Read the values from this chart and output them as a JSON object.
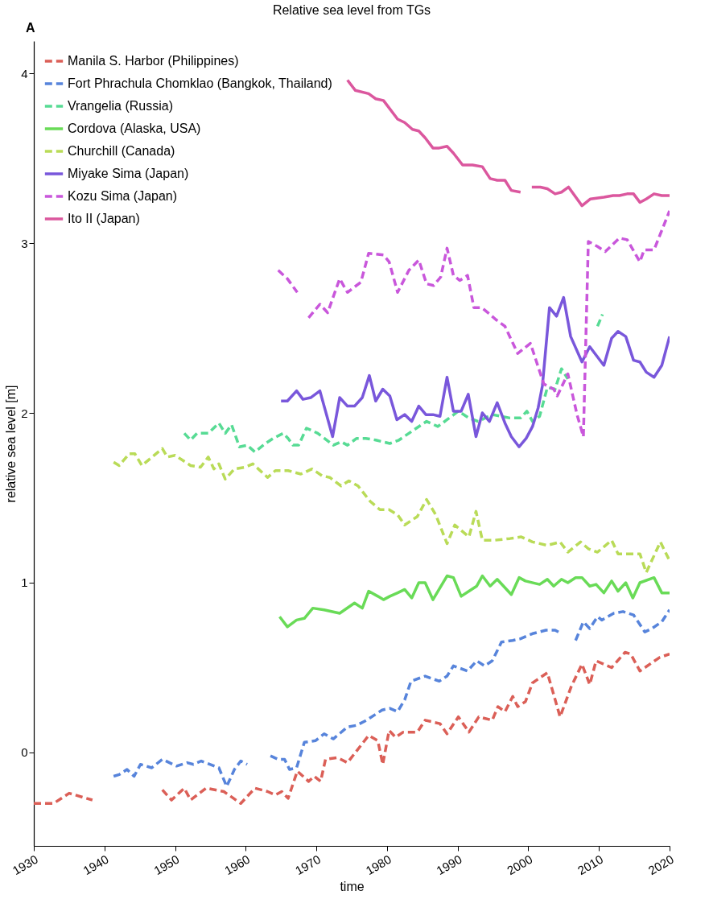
{
  "chart_data": {
    "type": "line",
    "title": "Relative sea level from TGs",
    "annotations": [
      "A"
    ],
    "xlabel": "time",
    "ylabel": "relative sea level [m]",
    "xlim": [
      1930,
      2020
    ],
    "xticks": [
      1930,
      1940,
      1950,
      1960,
      1970,
      1980,
      1990,
      2000,
      2010,
      2020
    ],
    "ylim": [
      -0.55,
      4.19
    ],
    "yticks": [
      0,
      1,
      2,
      3,
      4
    ],
    "grid": false,
    "legend": "top left",
    "marker": "none",
    "series": [
      {
        "name": "Manila S. Harbor (Philippines)",
        "color": "#db5f57",
        "line_style": "dashed",
        "x": [
          1930,
          1932.8,
          1935,
          1938.3,
          1940,
          1948.2,
          1949.5,
          1951.3,
          1952.2,
          1954.4,
          1956.9,
          1959.3,
          1961.3,
          1963.1,
          1964.2,
          1965.1,
          1966,
          1967.3,
          1968.9,
          1969.7,
          1970.6,
          1971.3,
          1973,
          1974.4,
          1977.4,
          1978.7,
          1979.4,
          1980.3,
          1981.2,
          1982.3,
          1984.3,
          1985.4,
          1987.5,
          1988.5,
          1990.1,
          1991.6,
          1993,
          1994.9,
          1995.7,
          1996.7,
          1997.8,
          1998.5,
          1999.6,
          2000.6,
          2002.7,
          2003.6,
          2004.5,
          2006.1,
          2007.6,
          2008.7,
          2009.6,
          2011.8,
          2013.7,
          2014.5,
          2015.8,
          2018.6,
          2020
        ],
        "values": [
          -0.3,
          -0.3,
          -0.24,
          -0.28,
          null,
          -0.22,
          -0.28,
          -0.21,
          -0.28,
          -0.21,
          -0.23,
          -0.3,
          -0.21,
          -0.23,
          -0.25,
          -0.23,
          -0.27,
          -0.11,
          -0.17,
          -0.14,
          -0.17,
          -0.04,
          -0.03,
          -0.06,
          0.1,
          0.07,
          -0.07,
          0.13,
          0.09,
          0.12,
          0.12,
          0.19,
          0.17,
          0.11,
          0.21,
          0.12,
          0.21,
          0.19,
          0.27,
          0.24,
          0.33,
          0.27,
          0.3,
          0.41,
          0.47,
          0.34,
          0.21,
          0.39,
          0.52,
          0.4,
          0.54,
          0.5,
          0.59,
          0.58,
          0.48,
          0.56,
          0.58
        ]
      },
      {
        "name": "Fort Phrachula Chomklao (Bangkok, Thailand)",
        "color": "#5784db",
        "line_style": "dashed",
        "x": [
          1941.3,
          1942.1,
          1943.2,
          1944.2,
          1945.1,
          1946.7,
          1948.2,
          1950.2,
          1951.7,
          1952.6,
          1953.7,
          1956.2,
          1957.3,
          1958.4,
          1959.3,
          1960.2,
          1962,
          1963.5,
          1964.6,
          1965.5,
          1966.2,
          1967.2,
          1968.3,
          1969.9,
          1971.1,
          1972.4,
          1974.4,
          1975.7,
          1977.1,
          1979.3,
          1980.4,
          1981.5,
          1982.5,
          1983.4,
          1985.4,
          1987.4,
          1988.5,
          1989.4,
          1991.4,
          1992.7,
          1993.8,
          1994.9,
          1996.2,
          1997.8,
          1998.9,
          2000.6,
          2002.5,
          2003.8,
          2004.7,
          2005.7,
          2006.7,
          2007.8,
          2008.7,
          2009.8,
          2010.4,
          2012.1,
          2013.4,
          2014.9,
          2016.5,
          2017.5,
          2018.9,
          2020
        ],
        "values": [
          -0.14,
          -0.13,
          -0.1,
          -0.14,
          -0.07,
          -0.09,
          -0.04,
          -0.08,
          -0.06,
          -0.07,
          -0.05,
          -0.09,
          -0.2,
          -0.1,
          -0.05,
          -0.07,
          null,
          -0.02,
          -0.04,
          -0.04,
          -0.1,
          -0.09,
          0.06,
          0.07,
          0.11,
          0.08,
          0.15,
          0.16,
          0.19,
          0.25,
          0.26,
          0.24,
          0.31,
          0.42,
          0.45,
          0.42,
          0.45,
          0.51,
          0.48,
          0.54,
          0.51,
          0.54,
          0.65,
          0.66,
          0.67,
          0.7,
          0.72,
          0.72,
          0.7,
          null,
          0.66,
          0.77,
          0.73,
          0.8,
          0.78,
          0.82,
          0.83,
          0.81,
          0.71,
          0.73,
          0.77,
          0.84
        ]
      },
      {
        "name": "Vrangelia (Russia)",
        "color": "#57db94",
        "line_style": "dashed",
        "x": [
          1951.3,
          1952.2,
          1953.1,
          1954.7,
          1956.2,
          1957.1,
          1958,
          1959.1,
          1960.2,
          1961.3,
          1962.8,
          1963.9,
          1965.3,
          1966,
          1966.7,
          1967.5,
          1968.6,
          1970.2,
          1972.4,
          1973.5,
          1974.4,
          1975.7,
          1977,
          1978.4,
          1980.4,
          1981.7,
          1983.1,
          1985.6,
          1987.2,
          1988.5,
          1990.1,
          1991.6,
          1992.9,
          1994.9,
          1997.4,
          1998.9,
          1999.8,
          2000.6,
          2001.6,
          2002.7,
          2003.8,
          2004.7,
          2005.6,
          2007.5,
          2009.8,
          2010.5
        ],
        "values": [
          1.88,
          1.84,
          1.88,
          1.88,
          1.94,
          1.88,
          1.93,
          1.8,
          1.81,
          1.77,
          1.82,
          1.85,
          1.88,
          1.85,
          1.81,
          1.81,
          1.91,
          1.88,
          1.81,
          1.83,
          1.81,
          1.85,
          1.85,
          1.84,
          1.82,
          1.84,
          1.88,
          1.95,
          1.92,
          1.96,
          2.01,
          1.97,
          1.95,
          1.99,
          1.97,
          1.97,
          2.01,
          1.95,
          1.98,
          2.15,
          2.14,
          2.26,
          2.2,
          null,
          2.51,
          2.58
        ]
      },
      {
        "name": "Cordova (Alaska, USA)",
        "color": "#69db57",
        "line_style": "solid",
        "x": [
          1964.8,
          1965.9,
          1967.2,
          1968.3,
          1969.5,
          1971.1,
          1973.3,
          1975.4,
          1976.5,
          1977.4,
          1978.7,
          1979.5,
          1980.4,
          1981.5,
          1982.5,
          1983.5,
          1984.5,
          1985.4,
          1986.5,
          1988.5,
          1989.4,
          1990.5,
          1991.6,
          1992.7,
          1993.5,
          1994.6,
          1995.6,
          1997.6,
          1998.7,
          1999.6,
          2001.6,
          2002.7,
          2003.6,
          2004.7,
          2005.6,
          2006.7,
          2007.6,
          2008.7,
          2009.6,
          2010.7,
          2011.8,
          2012.7,
          2013.8,
          2014.8,
          2015.8,
          2017.8,
          2018.9,
          2020
        ],
        "values": [
          0.8,
          0.74,
          0.78,
          0.79,
          0.85,
          0.84,
          0.82,
          0.88,
          0.85,
          0.95,
          0.92,
          0.9,
          0.92,
          0.94,
          0.96,
          0.91,
          1.0,
          1.0,
          0.9,
          1.04,
          1.03,
          0.92,
          0.95,
          0.98,
          1.04,
          0.98,
          1.02,
          0.93,
          1.03,
          1.01,
          0.99,
          1.02,
          0.98,
          1.02,
          1.0,
          1.03,
          1.03,
          0.98,
          0.99,
          0.94,
          1.01,
          0.95,
          1.0,
          0.91,
          1.0,
          1.03,
          0.94,
          0.94
        ]
      },
      {
        "name": "Churchill (Canada)",
        "color": "#b9db57",
        "line_style": "dashed",
        "x": [
          1941.3,
          1942.1,
          1943.5,
          1944.3,
          1945.3,
          1948.2,
          1948.9,
          1950,
          1952.2,
          1953.6,
          1954.7,
          1955.5,
          1956.2,
          1957.1,
          1958.4,
          1959.9,
          1961,
          1963.1,
          1964.2,
          1966,
          1967.8,
          1969.4,
          1970.8,
          1971.9,
          1973.5,
          1974.6,
          1975.9,
          1977.6,
          1979,
          1980.3,
          1981.5,
          1982.5,
          1984.3,
          1985.6,
          1986.9,
          1988.5,
          1989.6,
          1991.6,
          1992.6,
          1993.5,
          1995.2,
          1997.4,
          1999,
          2000.6,
          2002.7,
          2004.5,
          2005.6,
          2007.4,
          2008.5,
          2009.8,
          2011.8,
          2012.7,
          2014.5,
          2015.8,
          2016.7,
          2018.7,
          2020
        ],
        "values": [
          1.71,
          1.69,
          1.76,
          1.76,
          1.69,
          1.79,
          1.74,
          1.75,
          1.69,
          1.68,
          1.74,
          1.67,
          1.7,
          1.61,
          1.67,
          1.68,
          1.7,
          1.62,
          1.66,
          1.66,
          1.64,
          1.67,
          1.63,
          1.62,
          1.57,
          1.6,
          1.57,
          1.48,
          1.43,
          1.43,
          1.4,
          1.34,
          1.39,
          1.49,
          1.4,
          1.23,
          1.34,
          1.27,
          1.42,
          1.25,
          1.25,
          1.26,
          1.27,
          1.24,
          1.22,
          1.24,
          1.18,
          1.24,
          1.2,
          1.18,
          1.25,
          1.17,
          1.17,
          1.17,
          1.06,
          1.24,
          1.13
        ]
      },
      {
        "name": "Miyake Sima (Japan)",
        "color": "#7957db",
        "line_style": "solid",
        "x": [
          1965,
          1965.9,
          1967.2,
          1968.1,
          1969.2,
          1970.5,
          1972.3,
          1973.3,
          1974.4,
          1975.4,
          1976.5,
          1977.5,
          1978.4,
          1979.4,
          1980.4,
          1981.4,
          1982.5,
          1983.5,
          1984.5,
          1985.5,
          1986.5,
          1987.5,
          1988.5,
          1989.4,
          1990.5,
          1991.5,
          1992.6,
          1993.5,
          1994.5,
          1995.6,
          1996.7,
          1997.6,
          1998.7,
          1999.7,
          2000.6,
          2001.4,
          2002,
          2003,
          2004,
          2005,
          2006,
          2007.6,
          2008.7,
          2010.7,
          2011.8,
          2012.7,
          2013.8,
          2014.9,
          2015.8,
          2016.7,
          2017.8,
          2018.9,
          2020
        ],
        "values": [
          2.07,
          2.07,
          2.13,
          2.08,
          2.09,
          2.13,
          1.86,
          2.09,
          2.04,
          2.04,
          2.09,
          2.22,
          2.07,
          2.14,
          2.1,
          1.96,
          1.99,
          1.95,
          2.04,
          1.99,
          1.99,
          1.98,
          2.21,
          2.01,
          2.01,
          2.11,
          1.86,
          2.0,
          1.95,
          2.06,
          1.94,
          1.86,
          1.8,
          1.85,
          1.92,
          2.03,
          2.16,
          2.62,
          2.57,
          2.68,
          2.45,
          2.3,
          2.39,
          2.28,
          2.44,
          2.48,
          2.45,
          2.31,
          2.3,
          2.24,
          2.21,
          2.28,
          2.45
        ]
      },
      {
        "name": "Kozu Sima (Japan)",
        "color": "#c957db",
        "line_style": "dashed",
        "x": [
          1964.6,
          1965.9,
          1967.3,
          1968.1,
          1968.9,
          1970.5,
          1971.6,
          1973.3,
          1974.4,
          1976.3,
          1977.4,
          1979.5,
          1980.3,
          1981.5,
          1983.1,
          1984.5,
          1985.6,
          1986.6,
          1987.6,
          1988.5,
          1989.4,
          1990.3,
          1991.4,
          1992.3,
          1993.4,
          1994.3,
          1995.4,
          1996.7,
          1998.5,
          2000.3,
          2002.2,
          2003.6,
          2004.1,
          2005.6,
          2006.9,
          2007.8,
          2008.5,
          2009.8,
          2010.9,
          2012.9,
          2014,
          2015.8,
          2016.4,
          2017.8,
          2020
        ],
        "values": [
          2.84,
          2.79,
          2.71,
          null,
          2.56,
          2.64,
          2.59,
          2.79,
          2.71,
          2.77,
          2.94,
          2.93,
          2.89,
          2.71,
          2.84,
          2.9,
          2.76,
          2.75,
          2.8,
          2.97,
          2.81,
          2.78,
          2.81,
          2.62,
          2.62,
          2.59,
          2.55,
          2.51,
          2.35,
          2.41,
          2.17,
          2.14,
          2.1,
          2.23,
          1.99,
          1.86,
          3.01,
          2.98,
          2.95,
          3.03,
          3.02,
          2.89,
          2.96,
          2.96,
          3.19
        ]
      },
      {
        "name": "Ito II (Japan)",
        "color": "#db579e",
        "line_style": "solid",
        "x": [
          1974.4,
          1975.5,
          1977.4,
          1978.4,
          1979.5,
          1981.5,
          1982.5,
          1983.6,
          1984.5,
          1985.4,
          1986.5,
          1987.4,
          1988.5,
          1989.4,
          1990.7,
          1992.1,
          1993.5,
          1994.6,
          1995.6,
          1996.7,
          1997.6,
          1998.9,
          1999.7,
          2000.5,
          2001.7,
          2002.7,
          2003.8,
          2004.7,
          2005.7,
          2007.6,
          2008.8,
          2010.7,
          2012,
          2012.9,
          2014,
          2014.9,
          2015.8,
          2016.7,
          2017.8,
          2018.9,
          2020
        ],
        "values": [
          3.96,
          3.9,
          3.88,
          3.85,
          3.84,
          3.73,
          3.71,
          3.67,
          3.66,
          3.62,
          3.56,
          3.56,
          3.57,
          3.53,
          3.46,
          3.46,
          3.45,
          3.38,
          3.37,
          3.37,
          3.31,
          3.3,
          null,
          3.33,
          3.33,
          3.32,
          3.29,
          3.3,
          3.33,
          3.22,
          3.26,
          3.27,
          3.28,
          3.28,
          3.29,
          3.29,
          3.24,
          3.26,
          3.29,
          3.28,
          3.28
        ]
      }
    ]
  }
}
